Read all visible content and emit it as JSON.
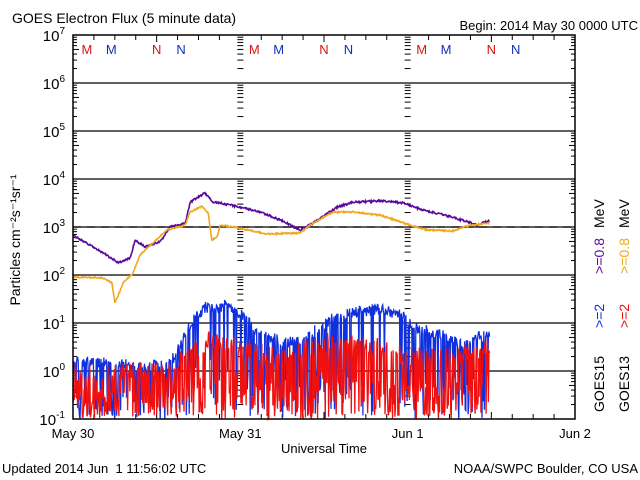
{
  "chart_data": {
    "type": "line",
    "title": "GOES Electron Flux (5 minute data)",
    "begin_label": "Begin: 2014 May 30 0000 UTC",
    "xlabel": "Universal Time",
    "ylabel": "Particles cm⁻²s⁻¹sr⁻¹",
    "yscale": "log",
    "ylim": [
      0.1,
      10000000
    ],
    "y_tick_base": "10",
    "y_tick_exponents": [
      7,
      6,
      5,
      4,
      3,
      2,
      1,
      0,
      -1
    ],
    "xlim_hours": [
      0,
      72
    ],
    "x_ticks": [
      {
        "hour": 0,
        "label": "May 30"
      },
      {
        "hour": 24,
        "label": "May 31"
      },
      {
        "hour": 48,
        "label": "Jun 1"
      },
      {
        "hour": 72,
        "label": "Jun 2"
      }
    ],
    "reference_line": {
      "value": 1000,
      "style": "dashed"
    },
    "grid": "horizontal lines at each decade",
    "markers": [
      {
        "hour": 2,
        "label": "M",
        "color": "#e01010"
      },
      {
        "hour": 5.5,
        "label": "M",
        "color": "#1030c0"
      },
      {
        "hour": 12,
        "label": "N",
        "color": "#e01010"
      },
      {
        "hour": 15.5,
        "label": "N",
        "color": "#1030c0"
      },
      {
        "hour": 26,
        "label": "M",
        "color": "#e01010"
      },
      {
        "hour": 29.5,
        "label": "M",
        "color": "#1030c0"
      },
      {
        "hour": 36,
        "label": "N",
        "color": "#e01010"
      },
      {
        "hour": 39.5,
        "label": "N",
        "color": "#1030c0"
      },
      {
        "hour": 50,
        "label": "M",
        "color": "#e01010"
      },
      {
        "hour": 53.5,
        "label": "M",
        "color": "#1030c0"
      },
      {
        "hour": 60,
        "label": "N",
        "color": "#e01010"
      },
      {
        "hour": 63.5,
        "label": "N",
        "color": "#1030c0"
      }
    ],
    "series": [
      {
        "name": "GOES15 >=0.8 MeV",
        "color": "#5a0a9a",
        "noise": 0.02,
        "dropout": 0,
        "hours": [
          0,
          4.3,
          6.5,
          8.2,
          8.9,
          10.3,
          12.5,
          13.9,
          16.1,
          16.8,
          18.9,
          20.1,
          21.1,
          24.4,
          26.8,
          29.7,
          32.6,
          34.4,
          37.9,
          40.2,
          44.0,
          47.3,
          50.2,
          54.5,
          58.0,
          59.8
        ],
        "values": [
          680,
          290,
          180,
          225,
          535,
          385,
          490,
          1000,
          1200,
          3300,
          5100,
          3300,
          3200,
          2500,
          2050,
          1400,
          870,
          1200,
          2600,
          3300,
          3500,
          3200,
          2250,
          1600,
          1100,
          1400
        ]
      },
      {
        "name": "GOES13 >=0.8 MeV",
        "color": "#f0a820",
        "noise": 0.015,
        "dropout": 0,
        "hours": [
          0,
          4.3,
          5.6,
          6.0,
          7.2,
          8.6,
          9.6,
          11.1,
          13.5,
          16.1,
          16.8,
          18.5,
          19.4,
          19.9,
          20.7,
          21.1,
          24.4,
          27.8,
          32.6,
          34.0,
          37.3,
          40.2,
          44.0,
          48.3,
          50.8,
          54.5,
          57.0,
          59.8
        ],
        "values": [
          91,
          87,
          68,
          26,
          68,
          110,
          260,
          420,
          870,
          1100,
          2050,
          2700,
          1950,
          535,
          620,
          1100,
          910,
          715,
          750,
          1100,
          2050,
          2050,
          1780,
          1100,
          870,
          830,
          1100,
          1200
        ]
      },
      {
        "name": "GOES15 >=2 MeV",
        "color": "#1030e0",
        "noise": 0.12,
        "dropout": 0.3,
        "hours": [
          0,
          5,
          10,
          14,
          16,
          17,
          19,
          20.5,
          22,
          24,
          27,
          30,
          33,
          35,
          37,
          40,
          44,
          47,
          49,
          52,
          56,
          59.8
        ],
        "values": [
          1.5,
          1.5,
          1.2,
          1.5,
          5,
          10,
          22,
          18,
          25,
          15,
          6,
          4,
          4,
          8,
          12,
          16,
          20,
          15,
          8,
          6,
          4,
          6
        ]
      },
      {
        "name": "GOES13 >=2 MeV",
        "color": "#f01010",
        "noise": 0.2,
        "dropout": 0.4,
        "hours": [
          0,
          14,
          16,
          20,
          24,
          30,
          36,
          40,
          44,
          48,
          54,
          59.8
        ],
        "values": [
          1,
          1,
          2,
          5,
          3,
          2,
          4,
          4,
          3,
          2,
          2,
          3
        ]
      }
    ],
    "legend": {
      "placement": "right, vertical",
      "columns": [
        {
          "satellite": "GOES15",
          "items": [
            {
              "label": ">=2",
              "color": "#1030e0"
            },
            {
              "label": ">=0.8",
              "color": "#5a0a9a"
            }
          ],
          "unit": "MeV"
        },
        {
          "satellite": "GOES13",
          "items": [
            {
              "label": ">=2",
              "color": "#f01010"
            },
            {
              "label": ">=0.8",
              "color": "#f0a820"
            }
          ],
          "unit": "MeV"
        }
      ]
    }
  },
  "footer": {
    "updated": "Updated 2014 Jun  1 11:56:02 UTC",
    "source": "NOAA/SWPC Boulder, CO USA"
  }
}
